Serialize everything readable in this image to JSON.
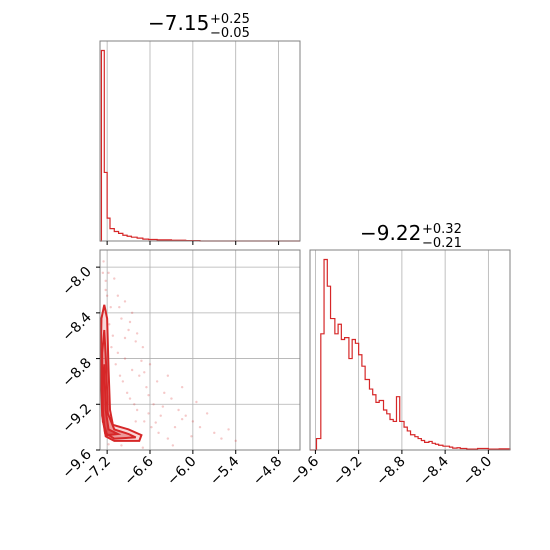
{
  "colors": {
    "series": "#d62728",
    "grid": "#b0b0b0",
    "frame": "#808080"
  },
  "chart_data": [
    {
      "type": "histogram",
      "panel": "marginal-param1",
      "title": {
        "main": "−7.15",
        "sup": "+0.25",
        "sub": "−0.05"
      },
      "xlim": [
        -7.3,
        -4.5
      ],
      "grid": true,
      "bins": [
        {
          "x": -7.3,
          "y": 0.0
        },
        {
          "x": -7.28,
          "y": 1.0
        },
        {
          "x": -7.24,
          "y": 0.36
        },
        {
          "x": -7.2,
          "y": 0.12
        },
        {
          "x": -7.16,
          "y": 0.065
        },
        {
          "x": -7.1,
          "y": 0.05
        },
        {
          "x": -7.04,
          "y": 0.04
        },
        {
          "x": -6.98,
          "y": 0.03
        },
        {
          "x": -6.92,
          "y": 0.025
        },
        {
          "x": -6.86,
          "y": 0.02
        },
        {
          "x": -6.78,
          "y": 0.015
        },
        {
          "x": -6.7,
          "y": 0.01
        },
        {
          "x": -6.62,
          "y": 0.008
        },
        {
          "x": -6.5,
          "y": 0.006
        },
        {
          "x": -6.3,
          "y": 0.004
        },
        {
          "x": -6.1,
          "y": 0.002
        },
        {
          "x": -5.9,
          "y": 0.0
        },
        {
          "x": -4.5,
          "y": 0.0
        }
      ]
    },
    {
      "type": "histogram",
      "panel": "marginal-param2",
      "title": {
        "main": "−9.22",
        "sup": "+0.32",
        "sub": "−0.21"
      },
      "xlim": [
        -9.65,
        -7.8
      ],
      "xticks": [
        "−9.6",
        "−9.2",
        "−8.8",
        "−8.4",
        "−8.0"
      ],
      "xtick_values": [
        -9.6,
        -9.2,
        -8.8,
        -8.4,
        -8.0
      ],
      "grid": true,
      "bins": [
        {
          "x": -9.65,
          "y": 0.0
        },
        {
          "x": -9.59,
          "y": 0.06
        },
        {
          "x": -9.55,
          "y": 0.61
        },
        {
          "x": -9.52,
          "y": 1.0
        },
        {
          "x": -9.49,
          "y": 0.86
        },
        {
          "x": -9.46,
          "y": 0.69
        },
        {
          "x": -9.42,
          "y": 0.61
        },
        {
          "x": -9.39,
          "y": 0.66
        },
        {
          "x": -9.36,
          "y": 0.58
        },
        {
          "x": -9.33,
          "y": 0.59
        },
        {
          "x": -9.29,
          "y": 0.48
        },
        {
          "x": -9.26,
          "y": 0.58
        },
        {
          "x": -9.23,
          "y": 0.56
        },
        {
          "x": -9.2,
          "y": 0.5
        },
        {
          "x": -9.17,
          "y": 0.44
        },
        {
          "x": -9.14,
          "y": 0.37
        },
        {
          "x": -9.1,
          "y": 0.32
        },
        {
          "x": -9.07,
          "y": 0.29
        },
        {
          "x": -9.04,
          "y": 0.25
        },
        {
          "x": -9.01,
          "y": 0.26
        },
        {
          "x": -8.97,
          "y": 0.21
        },
        {
          "x": -8.94,
          "y": 0.19
        },
        {
          "x": -8.91,
          "y": 0.16
        },
        {
          "x": -8.88,
          "y": 0.15
        },
        {
          "x": -8.85,
          "y": 0.28
        },
        {
          "x": -8.82,
          "y": 0.15
        },
        {
          "x": -8.78,
          "y": 0.12
        },
        {
          "x": -8.75,
          "y": 0.1
        },
        {
          "x": -8.72,
          "y": 0.08
        },
        {
          "x": -8.68,
          "y": 0.07
        },
        {
          "x": -8.65,
          "y": 0.06
        },
        {
          "x": -8.62,
          "y": 0.05
        },
        {
          "x": -8.59,
          "y": 0.04
        },
        {
          "x": -8.55,
          "y": 0.045
        },
        {
          "x": -8.52,
          "y": 0.035
        },
        {
          "x": -8.49,
          "y": 0.03
        },
        {
          "x": -8.46,
          "y": 0.025
        },
        {
          "x": -8.42,
          "y": 0.02
        },
        {
          "x": -8.39,
          "y": 0.02
        },
        {
          "x": -8.36,
          "y": 0.015
        },
        {
          "x": -8.33,
          "y": 0.01
        },
        {
          "x": -8.29,
          "y": 0.012
        },
        {
          "x": -8.26,
          "y": 0.008
        },
        {
          "x": -8.2,
          "y": 0.005
        },
        {
          "x": -8.1,
          "y": 0.008
        },
        {
          "x": -8.0,
          "y": 0.005
        },
        {
          "x": -7.9,
          "y": 0.006
        },
        {
          "x": -7.8,
          "y": 0.0
        }
      ]
    },
    {
      "type": "scatter",
      "panel": "joint-param1-param2",
      "xlim": [
        -7.3,
        -4.5
      ],
      "ylim": [
        -9.6,
        -7.85
      ],
      "xticks": [
        "−7.2",
        "−6.6",
        "−6.0",
        "−5.4",
        "−4.8"
      ],
      "xtick_values": [
        -7.2,
        -6.6,
        -6.0,
        -5.4,
        -4.8
      ],
      "yticks": [
        "−8.0",
        "−8.4",
        "−8.8",
        "−9.2",
        "−9.6"
      ],
      "ytick_values": [
        -8.0,
        -8.4,
        -8.8,
        -9.2,
        -9.6
      ],
      "grid": true,
      "contour_levels": [
        [
          [
            -7.24,
            -8.33
          ],
          [
            -7.2,
            -8.45
          ],
          [
            -7.18,
            -8.9
          ],
          [
            -7.16,
            -9.25
          ],
          [
            -7.12,
            -9.38
          ],
          [
            -6.9,
            -9.42
          ],
          [
            -6.72,
            -9.47
          ],
          [
            -6.75,
            -9.52
          ],
          [
            -7.1,
            -9.52
          ],
          [
            -7.22,
            -9.48
          ],
          [
            -7.27,
            -9.3
          ],
          [
            -7.29,
            -8.8
          ],
          [
            -7.28,
            -8.45
          ],
          [
            -7.24,
            -8.33
          ]
        ],
        [
          [
            -7.24,
            -8.55
          ],
          [
            -7.21,
            -8.9
          ],
          [
            -7.19,
            -9.28
          ],
          [
            -7.1,
            -9.42
          ],
          [
            -6.9,
            -9.46
          ],
          [
            -6.8,
            -9.49
          ],
          [
            -7.1,
            -9.5
          ],
          [
            -7.23,
            -9.45
          ],
          [
            -7.27,
            -9.2
          ],
          [
            -7.27,
            -8.75
          ],
          [
            -7.24,
            -8.55
          ]
        ],
        [
          [
            -7.24,
            -8.85
          ],
          [
            -7.22,
            -9.25
          ],
          [
            -7.18,
            -9.42
          ],
          [
            -7.05,
            -9.46
          ],
          [
            -7.2,
            -9.47
          ],
          [
            -7.26,
            -9.35
          ],
          [
            -7.26,
            -9.0
          ],
          [
            -7.24,
            -8.85
          ]
        ]
      ],
      "points": [
        [
          -7.25,
          -7.95
        ],
        [
          -7.18,
          -8.05
        ],
        [
          -7.1,
          -8.1
        ],
        [
          -7.22,
          -8.2
        ],
        [
          -7.05,
          -8.25
        ],
        [
          -6.95,
          -8.3
        ],
        [
          -7.15,
          -8.35
        ],
        [
          -6.85,
          -8.4
        ],
        [
          -7.0,
          -8.45
        ],
        [
          -6.9,
          -8.55
        ],
        [
          -7.12,
          -8.6
        ],
        [
          -6.8,
          -8.65
        ],
        [
          -6.7,
          -8.7
        ],
        [
          -7.05,
          -8.75
        ],
        [
          -6.95,
          -8.8
        ],
        [
          -6.6,
          -8.85
        ],
        [
          -6.85,
          -8.9
        ],
        [
          -6.75,
          -8.95
        ],
        [
          -6.5,
          -9.0
        ],
        [
          -6.65,
          -9.05
        ],
        [
          -6.4,
          -9.1
        ],
        [
          -6.3,
          -9.15
        ],
        [
          -6.55,
          -9.2
        ],
        [
          -6.2,
          -9.25
        ],
        [
          -6.1,
          -9.3
        ],
        [
          -6.45,
          -9.3
        ],
        [
          -6.0,
          -9.35
        ],
        [
          -5.9,
          -9.4
        ],
        [
          -6.25,
          -9.4
        ],
        [
          -5.7,
          -9.45
        ],
        [
          -5.6,
          -9.5
        ],
        [
          -6.8,
          -9.35
        ],
        [
          -7.08,
          -8.85
        ],
        [
          -6.98,
          -9.0
        ],
        [
          -6.88,
          -9.15
        ],
        [
          -6.78,
          -9.25
        ],
        [
          -6.68,
          -9.35
        ],
        [
          -6.58,
          -9.4
        ],
        [
          -6.48,
          -9.45
        ],
        [
          -6.35,
          -9.5
        ],
        [
          -7.2,
          -8.25
        ],
        [
          -7.17,
          -8.5
        ],
        [
          -7.14,
          -8.7
        ],
        [
          -7.02,
          -8.95
        ],
        [
          -6.92,
          -9.1
        ],
        [
          -6.82,
          -9.2
        ],
        [
          -6.62,
          -9.28
        ],
        [
          -6.52,
          -9.36
        ],
        [
          -6.95,
          -8.62
        ],
        [
          -6.72,
          -8.82
        ],
        [
          -6.62,
          -9.12
        ],
        [
          -6.35,
          -8.95
        ],
        [
          -6.15,
          -9.05
        ],
        [
          -5.95,
          -9.18
        ],
        [
          -5.8,
          -9.28
        ],
        [
          -5.5,
          -9.42
        ],
        [
          -7.26,
          -8.05
        ],
        [
          -7.22,
          -8.12
        ],
        [
          -7.03,
          -8.35
        ],
        [
          -6.88,
          -8.48
        ],
        [
          -6.78,
          -8.58
        ],
        [
          -6.68,
          -8.92
        ],
        [
          -6.42,
          -9.22
        ],
        [
          -6.15,
          -9.33
        ],
        [
          -5.4,
          -9.52
        ],
        [
          -6.02,
          -9.48
        ],
        [
          -6.28,
          -9.56
        ],
        [
          -6.7,
          -9.58
        ],
        [
          -7.0,
          -9.56
        ],
        [
          -7.18,
          -9.55
        ]
      ]
    }
  ]
}
